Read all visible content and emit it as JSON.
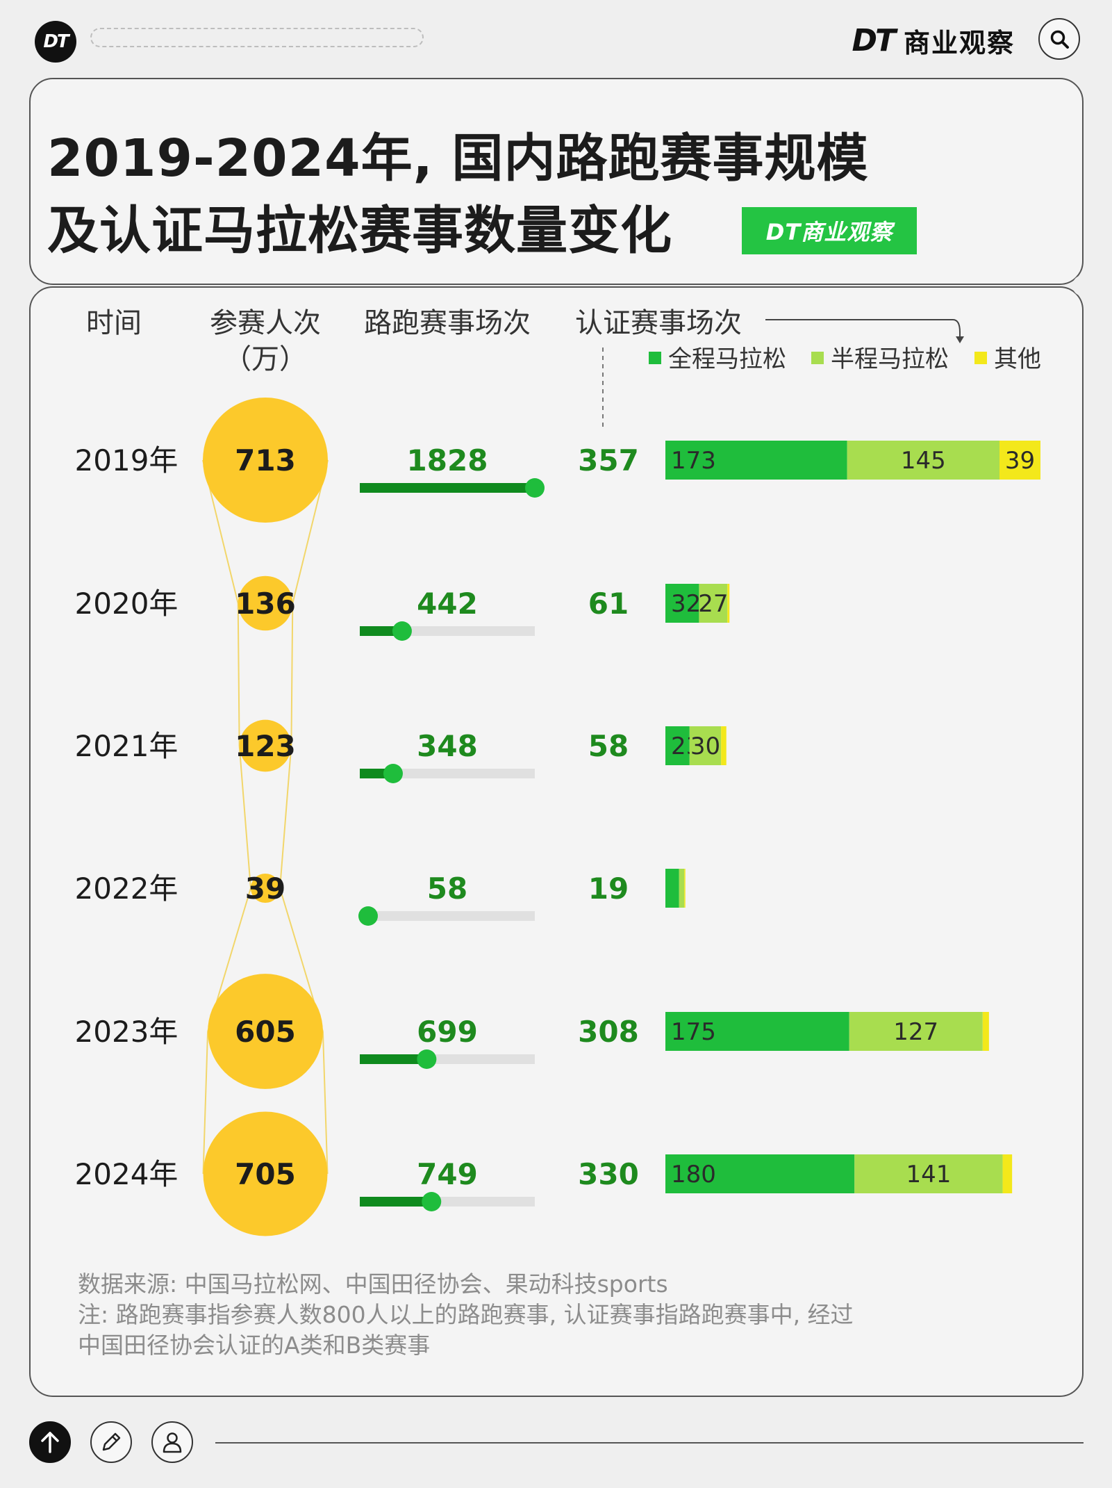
{
  "header": {
    "logo": "DT",
    "brand_mark": "DT",
    "brand_name": "商业观察"
  },
  "title": {
    "line1": "2019-2024年, 国内路跑赛事规模",
    "line2": "及认证马拉松赛事数量变化",
    "tag": "DT商业观察"
  },
  "columns": {
    "time": "时间",
    "participants": "参赛人次",
    "participants_unit": "（万）",
    "road_races": "路跑赛事场次",
    "certified": "认证赛事场次"
  },
  "chart_data": {
    "type": "table",
    "years": [
      "2019年",
      "2020年",
      "2021年",
      "2022年",
      "2023年",
      "2024年"
    ],
    "participants": [
      713,
      136,
      123,
      39,
      605,
      705
    ],
    "road_races": [
      1828,
      442,
      348,
      58,
      699,
      749
    ],
    "certified_total": [
      357,
      61,
      58,
      19,
      308,
      330
    ],
    "certified_breakdown": {
      "series": [
        {
          "name": "全程马拉松",
          "values": [
            173,
            32,
            23,
            13,
            175,
            180
          ]
        },
        {
          "name": "半程马拉松",
          "values": [
            145,
            27,
            30,
            5,
            127,
            141
          ]
        },
        {
          "name": "其他",
          "values": [
            39,
            2,
            5,
            1,
            6,
            9
          ]
        }
      ],
      "labels": [
        [
          "173",
          "145",
          "39"
        ],
        [
          "32",
          "27",
          ""
        ],
        [
          "23",
          "30",
          ""
        ],
        [
          "",
          "",
          ""
        ],
        [
          "175",
          "127",
          ""
        ],
        [
          "180",
          "141",
          ""
        ]
      ]
    },
    "colors": {
      "bubble": "#fcc92b",
      "bubble_outline": "#f2d66a",
      "road_bar": "#0f8a1e",
      "road_track": "#e0e0e0",
      "full": "#1fbd3c",
      "half": "#a8dd4f",
      "other": "#f3e81b",
      "number": "#1e8a1e"
    }
  },
  "footnote": {
    "line1": "数据来源: 中国马拉松网、中国田径协会、果动科技sports",
    "line2": "注: 路跑赛事指参赛人数800人以上的路跑赛事, 认证赛事指路跑赛事中, 经过",
    "line3": "中国田径协会认证的A类和B类赛事"
  }
}
